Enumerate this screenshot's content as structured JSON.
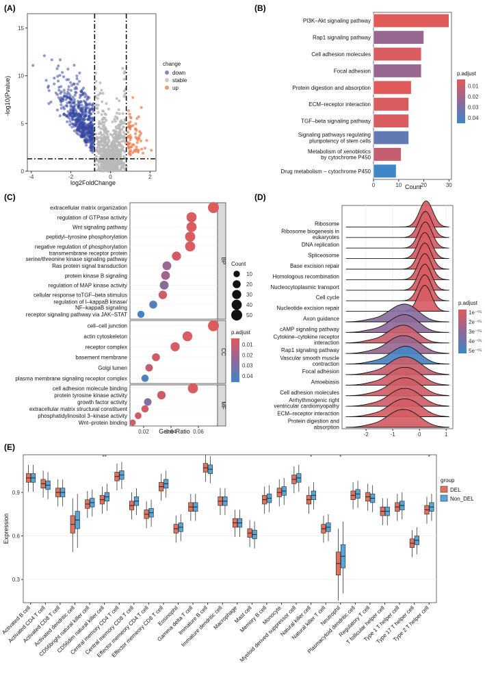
{
  "panels": {
    "A": {
      "label": "(A)",
      "chart_data": {
        "type": "scatter",
        "title": "",
        "xlabel": "log2FoldChange",
        "ylabel": "-log10(Pvalue)",
        "xlim": [
          -4.2,
          2.3
        ],
        "ylim": [
          0,
          16.5
        ],
        "xticks": [
          -4,
          -2,
          0,
          2
        ],
        "yticks": [
          0,
          5,
          10,
          15
        ],
        "thresholds": {
          "x": [
            -0.8,
            0.8
          ],
          "y": 1.3
        },
        "legend": {
          "title": "change",
          "position": "right",
          "entries": [
            {
              "name": "down",
              "color": "#7f86c9"
            },
            {
              "name": "stable",
              "color": "#c9c9c9"
            },
            {
              "name": "up",
              "color": "#f29a6e"
            }
          ]
        },
        "groups": {
          "down_color": "#3447a3",
          "stable_color": "#b8b8b8",
          "up_color": "#ee7a4a"
        }
      }
    },
    "B": {
      "label": "(B)",
      "chart_data": {
        "type": "bar",
        "orientation": "horizontal",
        "xlabel": "Count",
        "xlim": [
          0,
          31
        ],
        "xticks": [
          0,
          10,
          20,
          30
        ],
        "categories": [
          "PI3K–Akt signaling pathway",
          "Rap1 signaling pathway",
          "Cell adhesion molecules",
          "Focal adhesion",
          "Protein digestion and absorption",
          "ECM–receptor interaction",
          "TGF–beta signaling pathway",
          "Signaling pathways regulating\npluripotency of stem cells",
          "Metabolism of xenobiotics\nby cytochrome P450",
          "Drug metabolism – cytochrome P450"
        ],
        "values": [
          30,
          20,
          19,
          19,
          15,
          14,
          14,
          14,
          11,
          9
        ],
        "p_adjust": [
          0.004,
          0.022,
          0.006,
          0.022,
          0.004,
          0.006,
          0.006,
          0.036,
          0.011,
          0.045
        ],
        "legend": {
          "title": "p.adjust",
          "ticks": [
            "0.01",
            "0.02",
            "0.03",
            "0.04"
          ],
          "range": [
            0.004,
            0.045
          ]
        }
      }
    },
    "C": {
      "label": "(C)",
      "chart_data": {
        "type": "scatter",
        "subtype": "dotplot",
        "xlabel": "Gene Ratio",
        "xlim": [
          0.01,
          0.074
        ],
        "xticks": [
          0.02,
          0.04,
          0.06
        ],
        "xtick_labels": [
          "0.02",
          "0.04",
          "0.06"
        ],
        "facets": [
          {
            "name": "BP",
            "terms": [
              {
                "label": "extracellular matrix organization",
                "x": 0.071,
                "count": 50,
                "p": 0.005
              },
              {
                "label": "regulation of GTPase activity",
                "x": 0.055,
                "count": 40,
                "p": 0.006
              },
              {
                "label": "Wnt signaling pathway",
                "x": 0.055,
                "count": 40,
                "p": 0.006
              },
              {
                "label": "peptidyl–tyrosine phosphorylation",
                "x": 0.054,
                "count": 40,
                "p": 0.006
              },
              {
                "label": "negative regulation of phosphorylation",
                "x": 0.054,
                "count": 40,
                "p": 0.006
              },
              {
                "label": "transmembrane receptor protein\nserine/threonine kinase signaling pathway",
                "x": 0.044,
                "count": 30,
                "p": 0.008
              },
              {
                "label": "Ras protein signal transduction",
                "x": 0.037,
                "count": 27,
                "p": 0.022
              },
              {
                "label": "protein kinase B signaling",
                "x": 0.036,
                "count": 27,
                "p": 0.02
              },
              {
                "label": "regulation of MAP kinase activity",
                "x": 0.035,
                "count": 27,
                "p": 0.027
              },
              {
                "label": "cellular response toTGF–beta stimulus",
                "x": 0.034,
                "count": 24,
                "p": 0.008
              },
              {
                "label": "regulation of I–kappaB kinase/\nNF–kappaB signaling",
                "x": 0.027,
                "count": 20,
                "p": 0.04
              },
              {
                "label": "receptor signaling pathway via JAK–STAT",
                "x": 0.018,
                "count": 14,
                "p": 0.045
              }
            ]
          },
          {
            "name": "CC",
            "terms": [
              {
                "label": "cell–cell junction",
                "x": 0.071,
                "count": 50,
                "p": 0.005
              },
              {
                "label": "actin cytoskeleton",
                "x": 0.052,
                "count": 37,
                "p": 0.006
              },
              {
                "label": "receptor complex",
                "x": 0.043,
                "count": 30,
                "p": 0.007
              },
              {
                "label": "basement membrane",
                "x": 0.029,
                "count": 20,
                "p": 0.008
              },
              {
                "label": "Golgi lumen",
                "x": 0.024,
                "count": 17,
                "p": 0.012
              },
              {
                "label": "plasma membrane signaling receptor complex",
                "x": 0.021,
                "count": 15,
                "p": 0.042
              }
            ]
          },
          {
            "name": "MF",
            "terms": [
              {
                "label": "cell adhesion molecule binding",
                "x": 0.056,
                "count": 40,
                "p": 0.006
              },
              {
                "label": "protein tyrosine kinase activity",
                "x": 0.033,
                "count": 24,
                "p": 0.008
              },
              {
                "label": "growth factor activity",
                "x": 0.023,
                "count": 17,
                "p": 0.028
              },
              {
                "label": "extracellular matrix structural constituent",
                "x": 0.021,
                "count": 15,
                "p": 0.008
              },
              {
                "label": "phosphatidylinositol 3–kinase activity",
                "x": 0.016,
                "count": 12,
                "p": 0.008
              },
              {
                "label": "Wnt–protein binding",
                "x": 0.012,
                "count": 9,
                "p": 0.008
              }
            ]
          }
        ],
        "size_legend": {
          "title": "Count",
          "values": [
            10,
            20,
            30,
            40,
            50
          ]
        },
        "color_legend": {
          "title": "p.adjust",
          "ticks": [
            "0.01",
            "0.02",
            "0.03",
            "0.04"
          ],
          "range": [
            0.004,
            0.046
          ]
        }
      }
    },
    "D": {
      "label": "(D)",
      "chart_data": {
        "type": "area",
        "subtype": "ridgeline",
        "xlim": [
          -2.9,
          1.25
        ],
        "xticks": [
          -2,
          -1,
          0,
          1
        ],
        "rows": [
          {
            "label": "Ribosome",
            "peak": 0.25,
            "width": 0.25,
            "p": 0.8
          },
          {
            "label": "Ribosome biogenesis in\neukaryotes",
            "peak": 0.22,
            "width": 0.25,
            "p": 0.8
          },
          {
            "label": "DNA replication",
            "peak": 0.22,
            "width": 0.25,
            "p": 0.8
          },
          {
            "label": "Spliceosome",
            "peak": 0.2,
            "width": 0.25,
            "p": 0.8
          },
          {
            "label": "Base excision repair",
            "peak": 0.2,
            "width": 0.25,
            "p": 0.8
          },
          {
            "label": "Homologous recombination",
            "peak": 0.2,
            "width": 0.25,
            "p": 0.8
          },
          {
            "label": "Nucleocytoplasmic transport",
            "peak": 0.2,
            "width": 0.25,
            "p": 0.8
          },
          {
            "label": "Cell cycle",
            "peak": 0.2,
            "width": 0.25,
            "p": 0.8
          },
          {
            "label": "Nucleotide excision repair",
            "peak": 0.2,
            "width": 0.25,
            "p": 0.8
          },
          {
            "label": "Axon guidance",
            "peak": -0.45,
            "width": 0.45,
            "p": 3.0
          },
          {
            "label": "cAMP signaling pathway",
            "peak": -0.45,
            "width": 0.45,
            "p": 2.8
          },
          {
            "label": "Cytokine–cytokine receptor\ninteraction",
            "peak": -0.5,
            "width": 0.45,
            "p": 1.2
          },
          {
            "label": "Rap1 signaling pathway",
            "peak": -0.45,
            "width": 0.5,
            "p": 2.5
          },
          {
            "label": "Vascular smooth muscle\ncontraction",
            "peak": -0.4,
            "width": 0.45,
            "p": 5.0
          },
          {
            "label": "Focal adhesion",
            "peak": -0.4,
            "width": 0.5,
            "p": 1.2
          },
          {
            "label": "Amoebiasis",
            "peak": -0.4,
            "width": 0.5,
            "p": 1.0
          },
          {
            "label": "Cell adhesion molecules",
            "peak": -0.4,
            "width": 0.5,
            "p": 1.0
          },
          {
            "label": "Arrhythmogenic right\nventricular cardiomyopathy",
            "peak": -0.4,
            "width": 0.5,
            "p": 1.0
          },
          {
            "label": "ECM–receptor interaction",
            "peak": -0.4,
            "width": 0.5,
            "p": 0.9
          },
          {
            "label": "Protein digestion and\nabsorption",
            "peak": -0.45,
            "width": 0.5,
            "p": 0.9
          }
        ],
        "legend": {
          "title": "p.adjust",
          "ticks": [
            "1e⁻⁰⁵",
            "2e⁻⁰⁵",
            "3e⁻⁰⁵",
            "4e⁻⁰⁵",
            "5e⁻⁰⁵"
          ],
          "range": [
            0.5,
            5.2
          ]
        }
      }
    },
    "E": {
      "label": "(E)",
      "chart_data": {
        "type": "box",
        "ylabel": "Expression",
        "ylim": [
          0.14,
          1.16
        ],
        "yticks": [
          0.3,
          0.6,
          0.9
        ],
        "ytick_labels": [
          "0.3",
          "0.6",
          "0.9"
        ],
        "legend": {
          "title": "group",
          "position": "right",
          "entries": [
            {
              "name": "DEL",
              "color": "#e0725e"
            },
            {
              "name": "Non_DEL",
              "color": "#56a6d8"
            }
          ]
        },
        "categories": [
          "Activated B cell",
          "Activated CD4 T cell",
          "Activated CD8 T cell",
          "Activated dendritic cell",
          "CD56bright natural killer cell",
          "CD56dim natural killer cell",
          "Central memory CD4 T cell",
          "Central memory CD8 T cell",
          "Effector memeory CD4 T cell",
          "Effector memeory CD8 T cell",
          "Eosinophil",
          "Gamma delta T cell",
          "Immature  B cell",
          "Immature dendritic cell",
          "Macrophage",
          "Mast cell",
          "Memory B cell",
          "Monocyte",
          "Myeloid derived suppressor cell",
          "Natural killer cell",
          "Natural killer T cell",
          "Neutrophil",
          "Plasmacytoid dendritic cell",
          "Regulatory T cell",
          "T follicular helper cell",
          "Type 1 T helper cell",
          "Type 17 T helper cell",
          "Type 2 T helper cell"
        ],
        "significance": [
          "",
          "",
          "",
          "",
          "",
          "**",
          "",
          "",
          "",
          "",
          "",
          "",
          "",
          "",
          "",
          "",
          "",
          "",
          "",
          "*",
          "",
          "*",
          "",
          "",
          "",
          "",
          "",
          "*"
        ],
        "series": [
          {
            "name": "DEL",
            "medians": [
              1.0,
              0.96,
              0.9,
              0.68,
              0.82,
              0.85,
              1.01,
              0.81,
              0.75,
              0.94,
              0.65,
              0.8,
              1.07,
              0.84,
              0.69,
              0.62,
              0.85,
              0.9,
              0.99,
              0.85,
              0.65,
              0.41,
              0.88,
              0.87,
              0.77,
              0.8,
              0.55,
              0.78
            ]
          },
          {
            "name": "Non_DEL",
            "medians": [
              1.0,
              0.95,
              0.9,
              0.71,
              0.83,
              0.87,
              1.02,
              0.84,
              0.76,
              0.96,
              0.66,
              0.8,
              1.06,
              0.84,
              0.69,
              0.61,
              0.86,
              0.91,
              1.0,
              0.88,
              0.66,
              0.46,
              0.89,
              0.86,
              0.77,
              0.81,
              0.57,
              0.8
            ]
          }
        ]
      }
    }
  }
}
